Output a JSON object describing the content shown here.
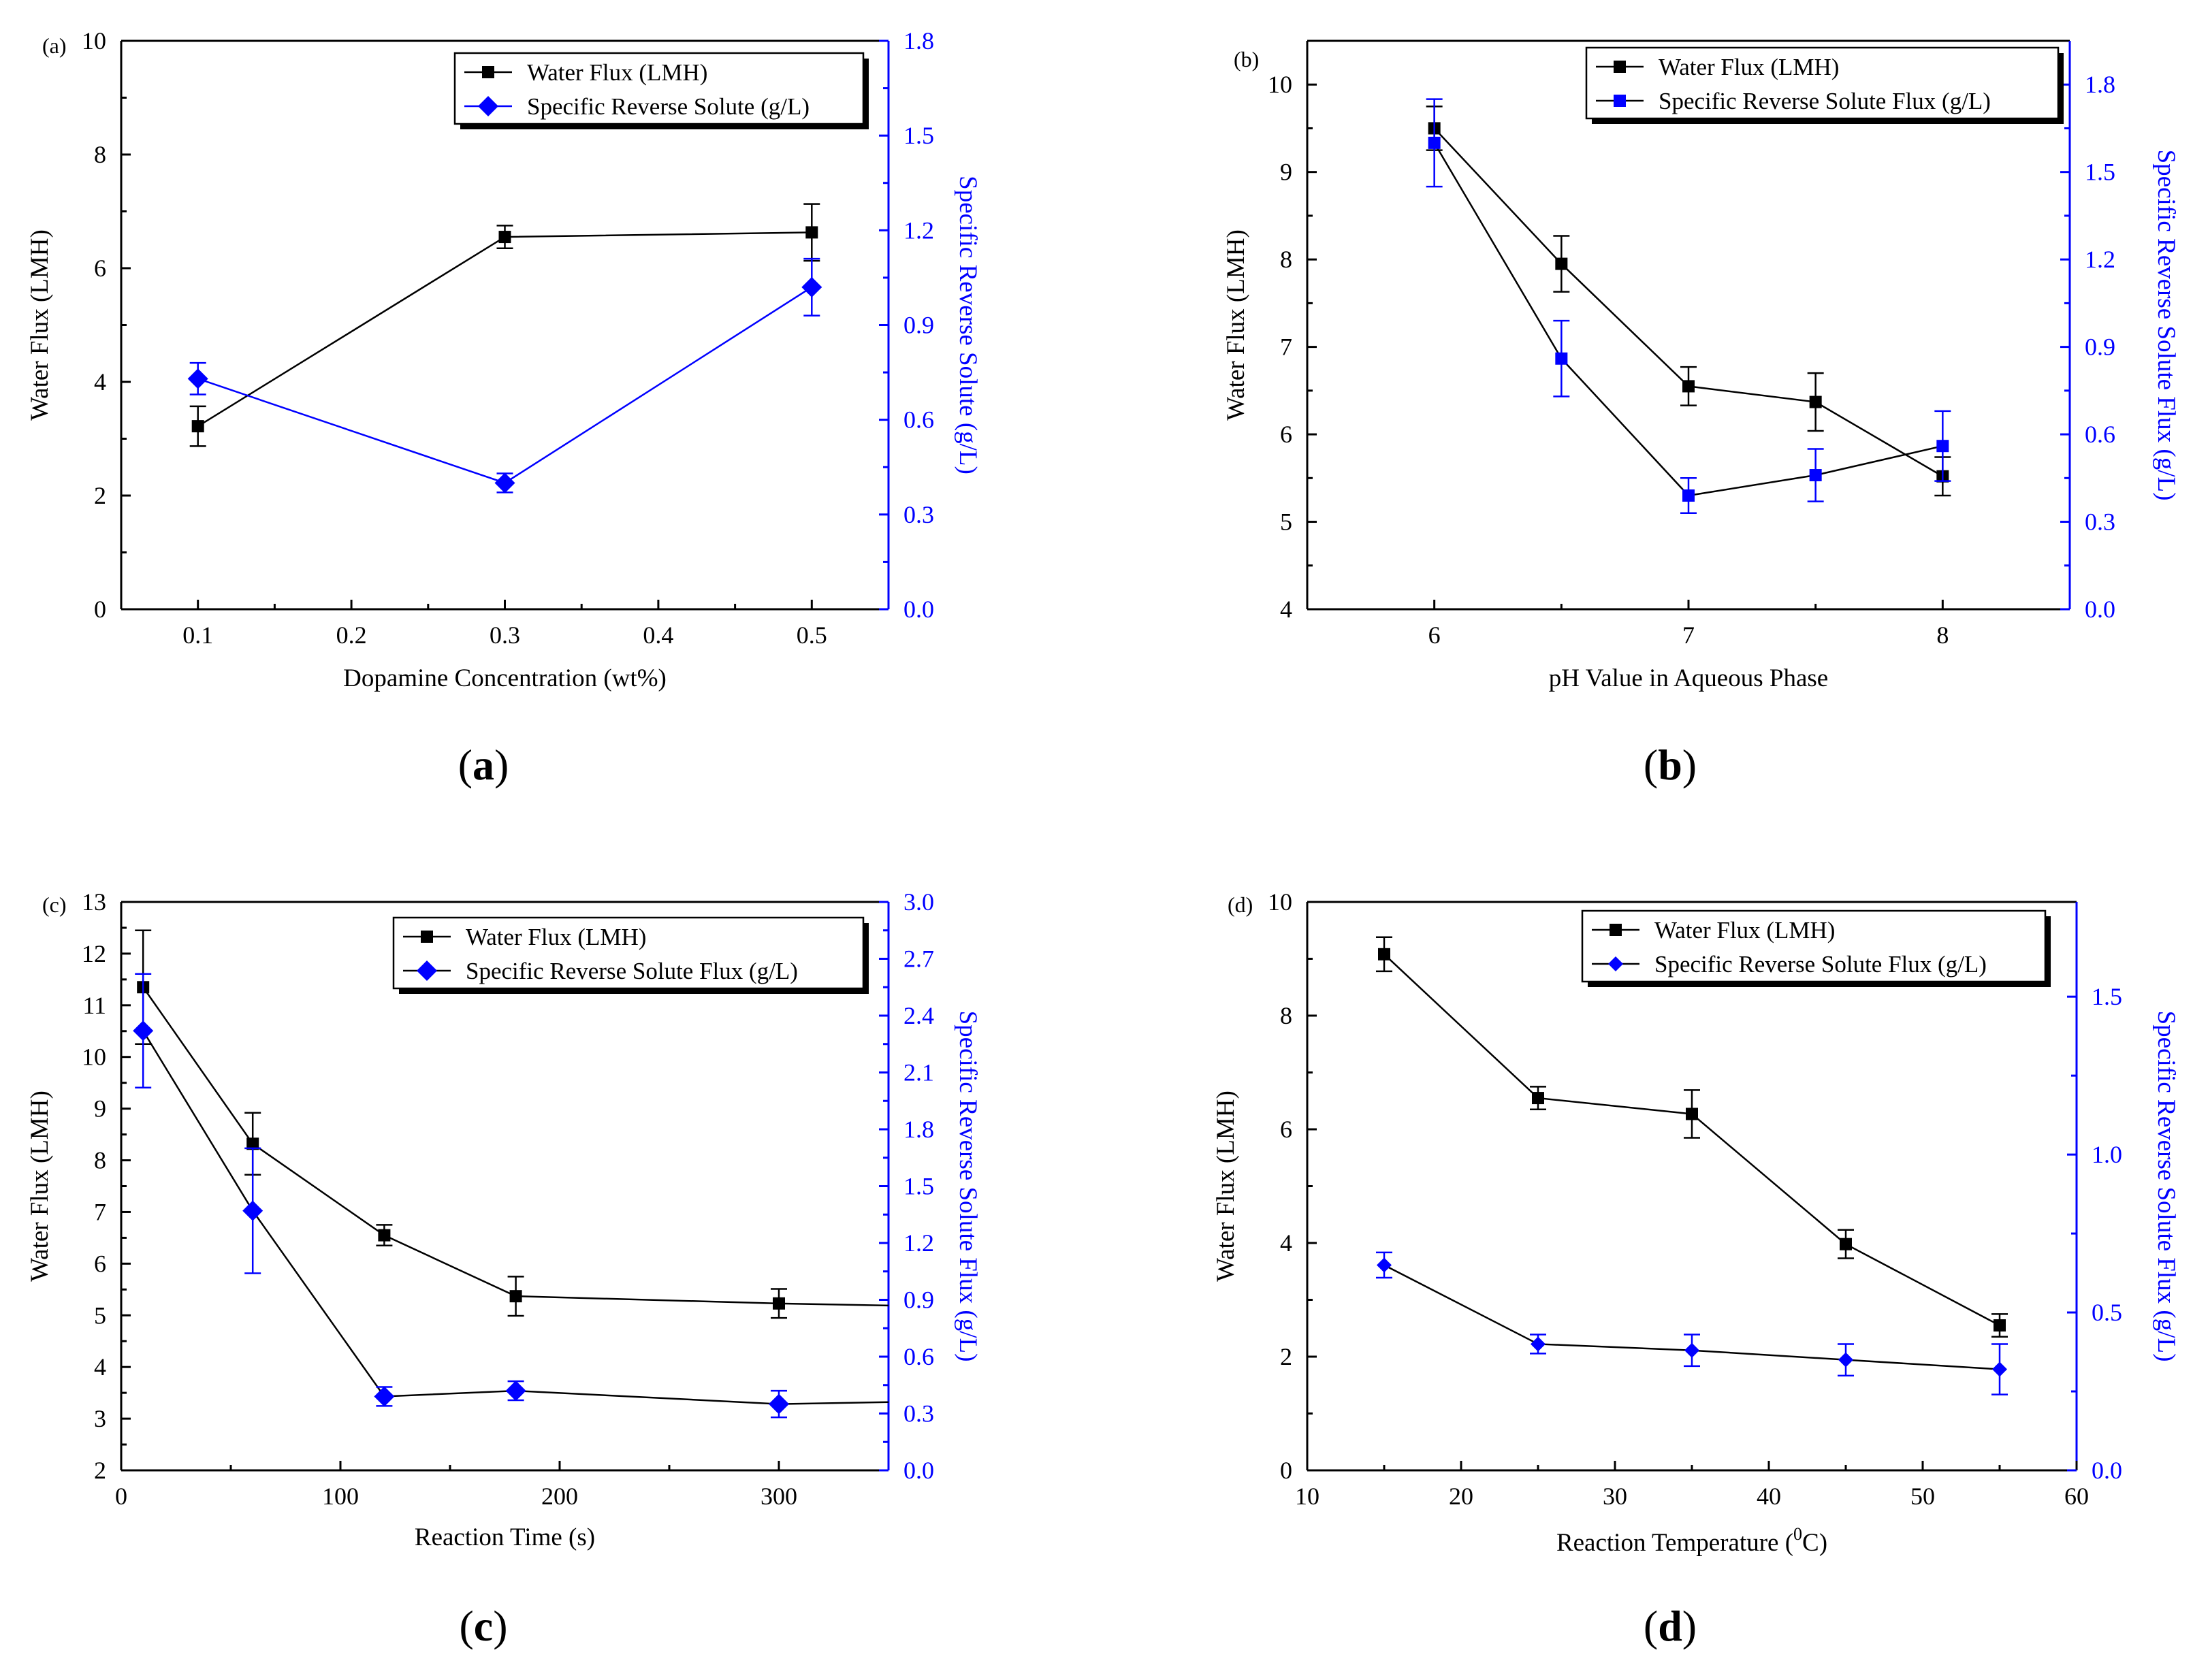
{
  "chart_data": [
    {
      "panel": "(a)",
      "type": "line",
      "caption": "a",
      "xlabel": "Dopamine Concentration (wt%)",
      "ylabel": "Water Flux (LMH)",
      "y2label": "Specific Reverse Solute (g/L)",
      "xlim": [
        0.05,
        0.55
      ],
      "ylim": [
        0,
        10
      ],
      "y2lim": [
        0,
        1.8
      ],
      "xticks": [
        0.1,
        0.2,
        0.3,
        0.4,
        0.5
      ],
      "xticklabels": [
        "0.1",
        "0.2",
        "0.3",
        "0.4",
        "0.5"
      ],
      "yticks": [
        0,
        2,
        4,
        6,
        8,
        10
      ],
      "yticklabels": [
        "0",
        "2",
        "4",
        "6",
        "8",
        "10"
      ],
      "y2ticks": [
        0,
        0.3,
        0.6,
        0.9,
        1.2,
        1.5,
        1.8
      ],
      "y2ticklabels": [
        "0.0",
        "0.3",
        "0.6",
        "0.9",
        "1.2",
        "1.5",
        "1.8"
      ],
      "legend_position": "top-right",
      "series": [
        {
          "name": "Water Flux (LMH)",
          "axis": "left",
          "marker": "square",
          "color": "#000000",
          "line_color": "#000000",
          "x": [
            0.1,
            0.3,
            0.5
          ],
          "values": [
            3.22,
            6.55,
            6.63
          ],
          "errors": [
            0.35,
            0.2,
            0.5
          ]
        },
        {
          "name": "Specific Reverse Solute (g/L)",
          "axis": "right",
          "marker": "diamond",
          "color": "#0000ff",
          "line_color": "#0000ff",
          "x": [
            0.1,
            0.3,
            0.5
          ],
          "values": [
            0.73,
            0.4,
            1.02
          ],
          "errors": [
            0.05,
            0.03,
            0.09
          ]
        }
      ]
    },
    {
      "panel": "(b)",
      "type": "line",
      "caption": "b",
      "xlabel": "pH Value in Aqueous Phase",
      "ylabel": "Water Flux  (LMH)",
      "y2label": "Specific Reverse Solute Flux (g/L)",
      "xlim": [
        5.5,
        8.5
      ],
      "ylim": [
        4,
        10.5
      ],
      "y2lim": [
        0,
        1.95
      ],
      "xticks": [
        6,
        7,
        8
      ],
      "xticklabels": [
        "6",
        "7",
        "8"
      ],
      "yticks": [
        4,
        5,
        6,
        7,
        8,
        9,
        10
      ],
      "yticklabels": [
        "4",
        "5",
        "6",
        "7",
        "8",
        "9",
        "10"
      ],
      "y2ticks": [
        0,
        0.3,
        0.6,
        0.9,
        1.2,
        1.5,
        1.8
      ],
      "y2ticklabels": [
        "0.0",
        "0.3",
        "0.6",
        "0.9",
        "1.2",
        "1.5",
        "1.8"
      ],
      "legend_position": "top-right",
      "series": [
        {
          "name": "Water Flux  (LMH)",
          "axis": "left",
          "marker": "square",
          "color": "#000000",
          "line_color": "#000000",
          "x": [
            6,
            6.5,
            7,
            7.5,
            8
          ],
          "values": [
            9.5,
            7.95,
            6.55,
            6.37,
            5.52
          ],
          "errors": [
            0.25,
            0.32,
            0.22,
            0.33,
            0.22
          ]
        },
        {
          "name": "Specific Reverse Solute Flux (g/L)",
          "axis": "right",
          "marker": "square",
          "color": "#0000ff",
          "line_color": "#000000",
          "x": [
            6,
            6.5,
            7,
            7.5,
            8
          ],
          "values": [
            1.6,
            0.86,
            0.39,
            0.46,
            0.56
          ],
          "errors": [
            0.15,
            0.13,
            0.06,
            0.09,
            0.12
          ]
        }
      ]
    },
    {
      "panel": "(c)",
      "type": "line",
      "caption": "c",
      "xlabel": "Reaction Time (s)",
      "ylabel": "Water Flux  (LMH)",
      "y2label": "Specific Reverse Solute Flux (g/L)",
      "xlim": [
        0,
        350
      ],
      "ylim": [
        2,
        13
      ],
      "y2lim": [
        0,
        3.0
      ],
      "xticks": [
        0,
        100,
        200,
        300
      ],
      "xticklabels": [
        "0",
        "100",
        "200",
        "300"
      ],
      "yticks": [
        2,
        3,
        4,
        5,
        6,
        7,
        8,
        9,
        10,
        11,
        12,
        13
      ],
      "yticklabels": [
        "2",
        "3",
        "4",
        "5",
        "6",
        "7",
        "8",
        "9",
        "10",
        "11",
        "12",
        "13"
      ],
      "y2ticks": [
        0,
        0.3,
        0.6,
        0.9,
        1.2,
        1.5,
        1.8,
        2.1,
        2.4,
        2.7,
        3.0
      ],
      "y2ticklabels": [
        "0.0",
        "0.3",
        "0.6",
        "0.9",
        "1.2",
        "1.5",
        "1.8",
        "2.1",
        "2.4",
        "2.7",
        "3.0"
      ],
      "legend_position": "top-right",
      "extend_to_edge": true,
      "series": [
        {
          "name": "Water Flux  (LMH)",
          "axis": "left",
          "marker": "square",
          "color": "#000000",
          "line_color": "#000000",
          "x": [
            10,
            60,
            120,
            180,
            300
          ],
          "values": [
            11.35,
            8.32,
            6.55,
            5.37,
            5.23
          ],
          "end_value": 5.19,
          "errors": [
            1.1,
            0.6,
            0.2,
            0.38,
            0.28
          ]
        },
        {
          "name": "Specific Reverse Solute Flux (g/L)",
          "axis": "right",
          "marker": "diamond",
          "color": "#0000ff",
          "line_color": "#000000",
          "x": [
            10,
            60,
            120,
            180,
            300
          ],
          "values": [
            2.32,
            1.37,
            0.39,
            0.42,
            0.35
          ],
          "end_value": 0.36,
          "errors": [
            0.3,
            0.33,
            0.05,
            0.05,
            0.07
          ]
        }
      ]
    },
    {
      "panel": "(d)",
      "type": "line",
      "caption": "d",
      "xlabel": "Reaction Temperature (",
      "xlabel_sup": "0",
      "xlabel_suffix": "C)",
      "ylabel": "Water Flux (LMH)",
      "y2label": "Specific Reverse Solute Flux (g/L)",
      "xlim": [
        10,
        60
      ],
      "ylim": [
        0,
        10
      ],
      "y2lim": [
        0,
        1.8
      ],
      "xticks": [
        10,
        20,
        30,
        40,
        50,
        60
      ],
      "xticklabels": [
        "10",
        "20",
        "30",
        "40",
        "50",
        "60"
      ],
      "yticks": [
        0,
        2,
        4,
        6,
        8,
        10
      ],
      "yticklabels": [
        "0",
        "2",
        "4",
        "6",
        "8",
        "10"
      ],
      "y2ticks": [
        0,
        0.5,
        1.0,
        1.5
      ],
      "y2ticklabels": [
        "0.0",
        "0.5",
        "1.0",
        "1.5"
      ],
      "legend_position": "top-right",
      "series": [
        {
          "name": "Water Flux (LMH)",
          "axis": "left",
          "marker": "square",
          "color": "#000000",
          "line_color": "#000000",
          "x": [
            15,
            25,
            35,
            45,
            55
          ],
          "values": [
            9.08,
            6.55,
            6.27,
            3.98,
            2.55
          ],
          "errors": [
            0.3,
            0.2,
            0.42,
            0.25,
            0.2
          ]
        },
        {
          "name": "Specific Reverse Solute Flux (g/L)",
          "axis": "right",
          "marker": "diamond-small",
          "color": "#0000ff",
          "line_color": "#000000",
          "x": [
            15,
            25,
            35,
            45,
            55
          ],
          "values": [
            0.65,
            0.4,
            0.38,
            0.35,
            0.32
          ],
          "errors": [
            0.04,
            0.03,
            0.05,
            0.05,
            0.08
          ]
        }
      ]
    }
  ]
}
